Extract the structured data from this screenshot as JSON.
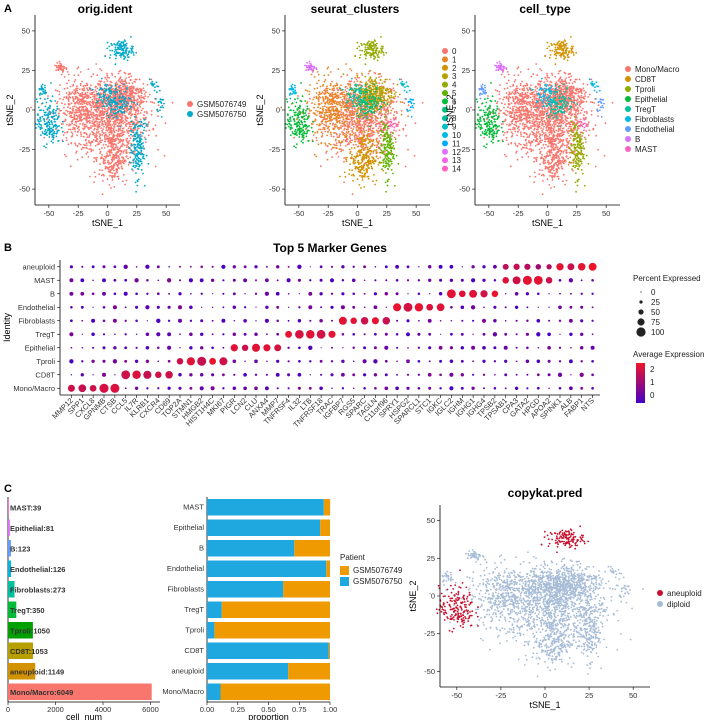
{
  "panels": {
    "a": "A",
    "b": "B",
    "c": "C"
  },
  "tsne_panels": [
    {
      "title": "orig.ident",
      "legend_title": "",
      "legend": [
        {
          "label": "GSM5076749",
          "color": "#F8766D"
        },
        {
          "label": "GSM5076750",
          "color": "#00A9C9"
        }
      ]
    },
    {
      "title": "seurat_clusters",
      "legend_title": "",
      "legend": [
        {
          "label": "0",
          "color": "#F8766D"
        },
        {
          "label": "1",
          "color": "#E88526"
        },
        {
          "label": "2",
          "color": "#D39200"
        },
        {
          "label": "3",
          "color": "#B79F00"
        },
        {
          "label": "4",
          "color": "#93AA00"
        },
        {
          "label": "5",
          "color": "#5EB300"
        },
        {
          "label": "6",
          "color": "#00BA38"
        },
        {
          "label": "7",
          "color": "#00BF74"
        },
        {
          "label": "8",
          "color": "#00C19F"
        },
        {
          "label": "9",
          "color": "#00BFC4"
        },
        {
          "label": "10",
          "color": "#00B9E3"
        },
        {
          "label": "11",
          "color": "#00ADFA"
        },
        {
          "label": "12",
          "color": "#DB72FB"
        },
        {
          "label": "13",
          "color": "#F564E3"
        },
        {
          "label": "14",
          "color": "#FF61C3"
        }
      ]
    },
    {
      "title": "cell_type",
      "legend_title": "",
      "legend": [
        {
          "label": "Mono/Macro",
          "color": "#F8766D"
        },
        {
          "label": "CD8T",
          "color": "#D39200"
        },
        {
          "label": "Tproli",
          "color": "#93AA00"
        },
        {
          "label": "Epithelial",
          "color": "#00BA38"
        },
        {
          "label": "TregT",
          "color": "#00C19F"
        },
        {
          "label": "Fibroblasts",
          "color": "#00B9E3"
        },
        {
          "label": "Endothelial",
          "color": "#619CFF"
        },
        {
          "label": "B",
          "color": "#DB72FB"
        },
        {
          "label": "MAST",
          "color": "#FF61C3"
        }
      ]
    }
  ],
  "tsne_axes": {
    "xlabel": "tSNE_1",
    "ylabel": "tSNE_2",
    "xticks": [
      "-50",
      "-25",
      "0",
      "25",
      "50"
    ],
    "yticks": [
      "50",
      "25",
      "0",
      "-25",
      "-50"
    ]
  },
  "chart_data": [
    {
      "type": "dotplot",
      "title": "Top 5 Marker Genes",
      "ylabel": "Identity",
      "rows": [
        "aneuploid",
        "MAST",
        "B",
        "Endothelial",
        "Fibroblasts",
        "TregT",
        "Epithelial",
        "Tproli",
        "CD8T",
        "Mono/Macro"
      ],
      "genes": [
        "MMP12",
        "SPP1",
        "CXCL8",
        "GPNMB",
        "CTSB",
        "CCL5",
        "IL7R",
        "KLRB1",
        "CXCR4",
        "CD69",
        "TOP2A",
        "STMN1",
        "HMGB2",
        "HIST1H4C",
        "MKI67",
        "PIGR",
        "LCN2",
        "CLU",
        "ANXA4",
        "MMP7",
        "TNFRSF4",
        "IL32",
        "LTB",
        "TNFRSF18",
        "TRAC",
        "IGFBP7",
        "RGS5",
        "SPARC",
        "TAGLN",
        "C11orf96",
        "SPRY1",
        "HSPG2",
        "SPARCL1",
        "STC1",
        "IGKC",
        "IGLC2",
        "IGHM",
        "IGHG1",
        "IGHG4",
        "TPSB2",
        "TPSAB1",
        "CPA3",
        "GATA2",
        "HPGD",
        "APOA2",
        "SPINK1",
        "ALB",
        "FABP1",
        "NTS"
      ],
      "size_legend_title": "Percent Expressed",
      "size_legend": [
        "0",
        "25",
        "50",
        "75",
        "100"
      ],
      "color_legend_title": "Average Expression",
      "color_legend": [
        "2",
        "1",
        "0"
      ]
    },
    {
      "type": "bar",
      "orientation": "horizontal",
      "xlabel": "cell_num",
      "xticks": [
        "0",
        "2000",
        "4000",
        "6000"
      ],
      "categories": [
        "MAST",
        "Epithelial",
        "B",
        "Endothelial",
        "Fibroblasts",
        "TregT",
        "Tproli",
        "CD8T",
        "aneuploid",
        "Mono/Macro"
      ],
      "values": [
        39,
        81,
        123,
        126,
        273,
        350,
        1050,
        1053,
        1149,
        6049
      ],
      "labels": [
        "MAST:39",
        "Epithelial:81",
        "B:123",
        "Endothelial:126",
        "Fibroblasts:273",
        "TregT:350",
        "Tproli:1050",
        "CD8T:1053",
        "aneuploid:1149",
        "Mono/Macro:6049"
      ],
      "colors": [
        "#FF61C3",
        "#DB72FB",
        "#619CFF",
        "#00B9E3",
        "#00C19F",
        "#00BA38",
        "#00A100",
        "#B79F00",
        "#D39200",
        "#F8766D"
      ]
    },
    {
      "type": "stacked_bar",
      "orientation": "horizontal",
      "xlabel": "proportion",
      "xticks": [
        "0.00",
        "0.25",
        "0.50",
        "0.75",
        "1.00"
      ],
      "categories": [
        "MAST",
        "Epithelial",
        "B",
        "Endothelial",
        "Fibroblasts",
        "TregT",
        "Tproli",
        "CD8T",
        "aneuploid",
        "Mono/Macro"
      ],
      "series": [
        {
          "name": "GSM5076750",
          "color": "#1FA7E0",
          "values": [
            0.95,
            0.92,
            0.71,
            0.97,
            0.62,
            0.12,
            0.06,
            0.99,
            0.66,
            0.11
          ]
        },
        {
          "name": "GSM5076749",
          "color": "#EE9A00",
          "values": [
            0.05,
            0.08,
            0.29,
            0.03,
            0.38,
            0.88,
            0.94,
            0.01,
            0.34,
            0.89
          ]
        }
      ],
      "legend_title": "Patient",
      "legend": [
        {
          "label": "GSM5076749",
          "color": "#EE9A00"
        },
        {
          "label": "GSM5076750",
          "color": "#1FA7E0"
        }
      ]
    },
    {
      "type": "scatter",
      "title": "copykat.pred",
      "xlabel": "tSNE_1",
      "ylabel": "tSNE_2",
      "xticks": [
        "-50",
        "-25",
        "0",
        "25",
        "50"
      ],
      "yticks": [
        "50",
        "25",
        "0",
        "-25",
        "-50"
      ],
      "legend": [
        {
          "label": "aneuploid",
          "color": "#C8102E"
        },
        {
          "label": "diploid",
          "color": "#A7BCD6"
        }
      ]
    }
  ]
}
